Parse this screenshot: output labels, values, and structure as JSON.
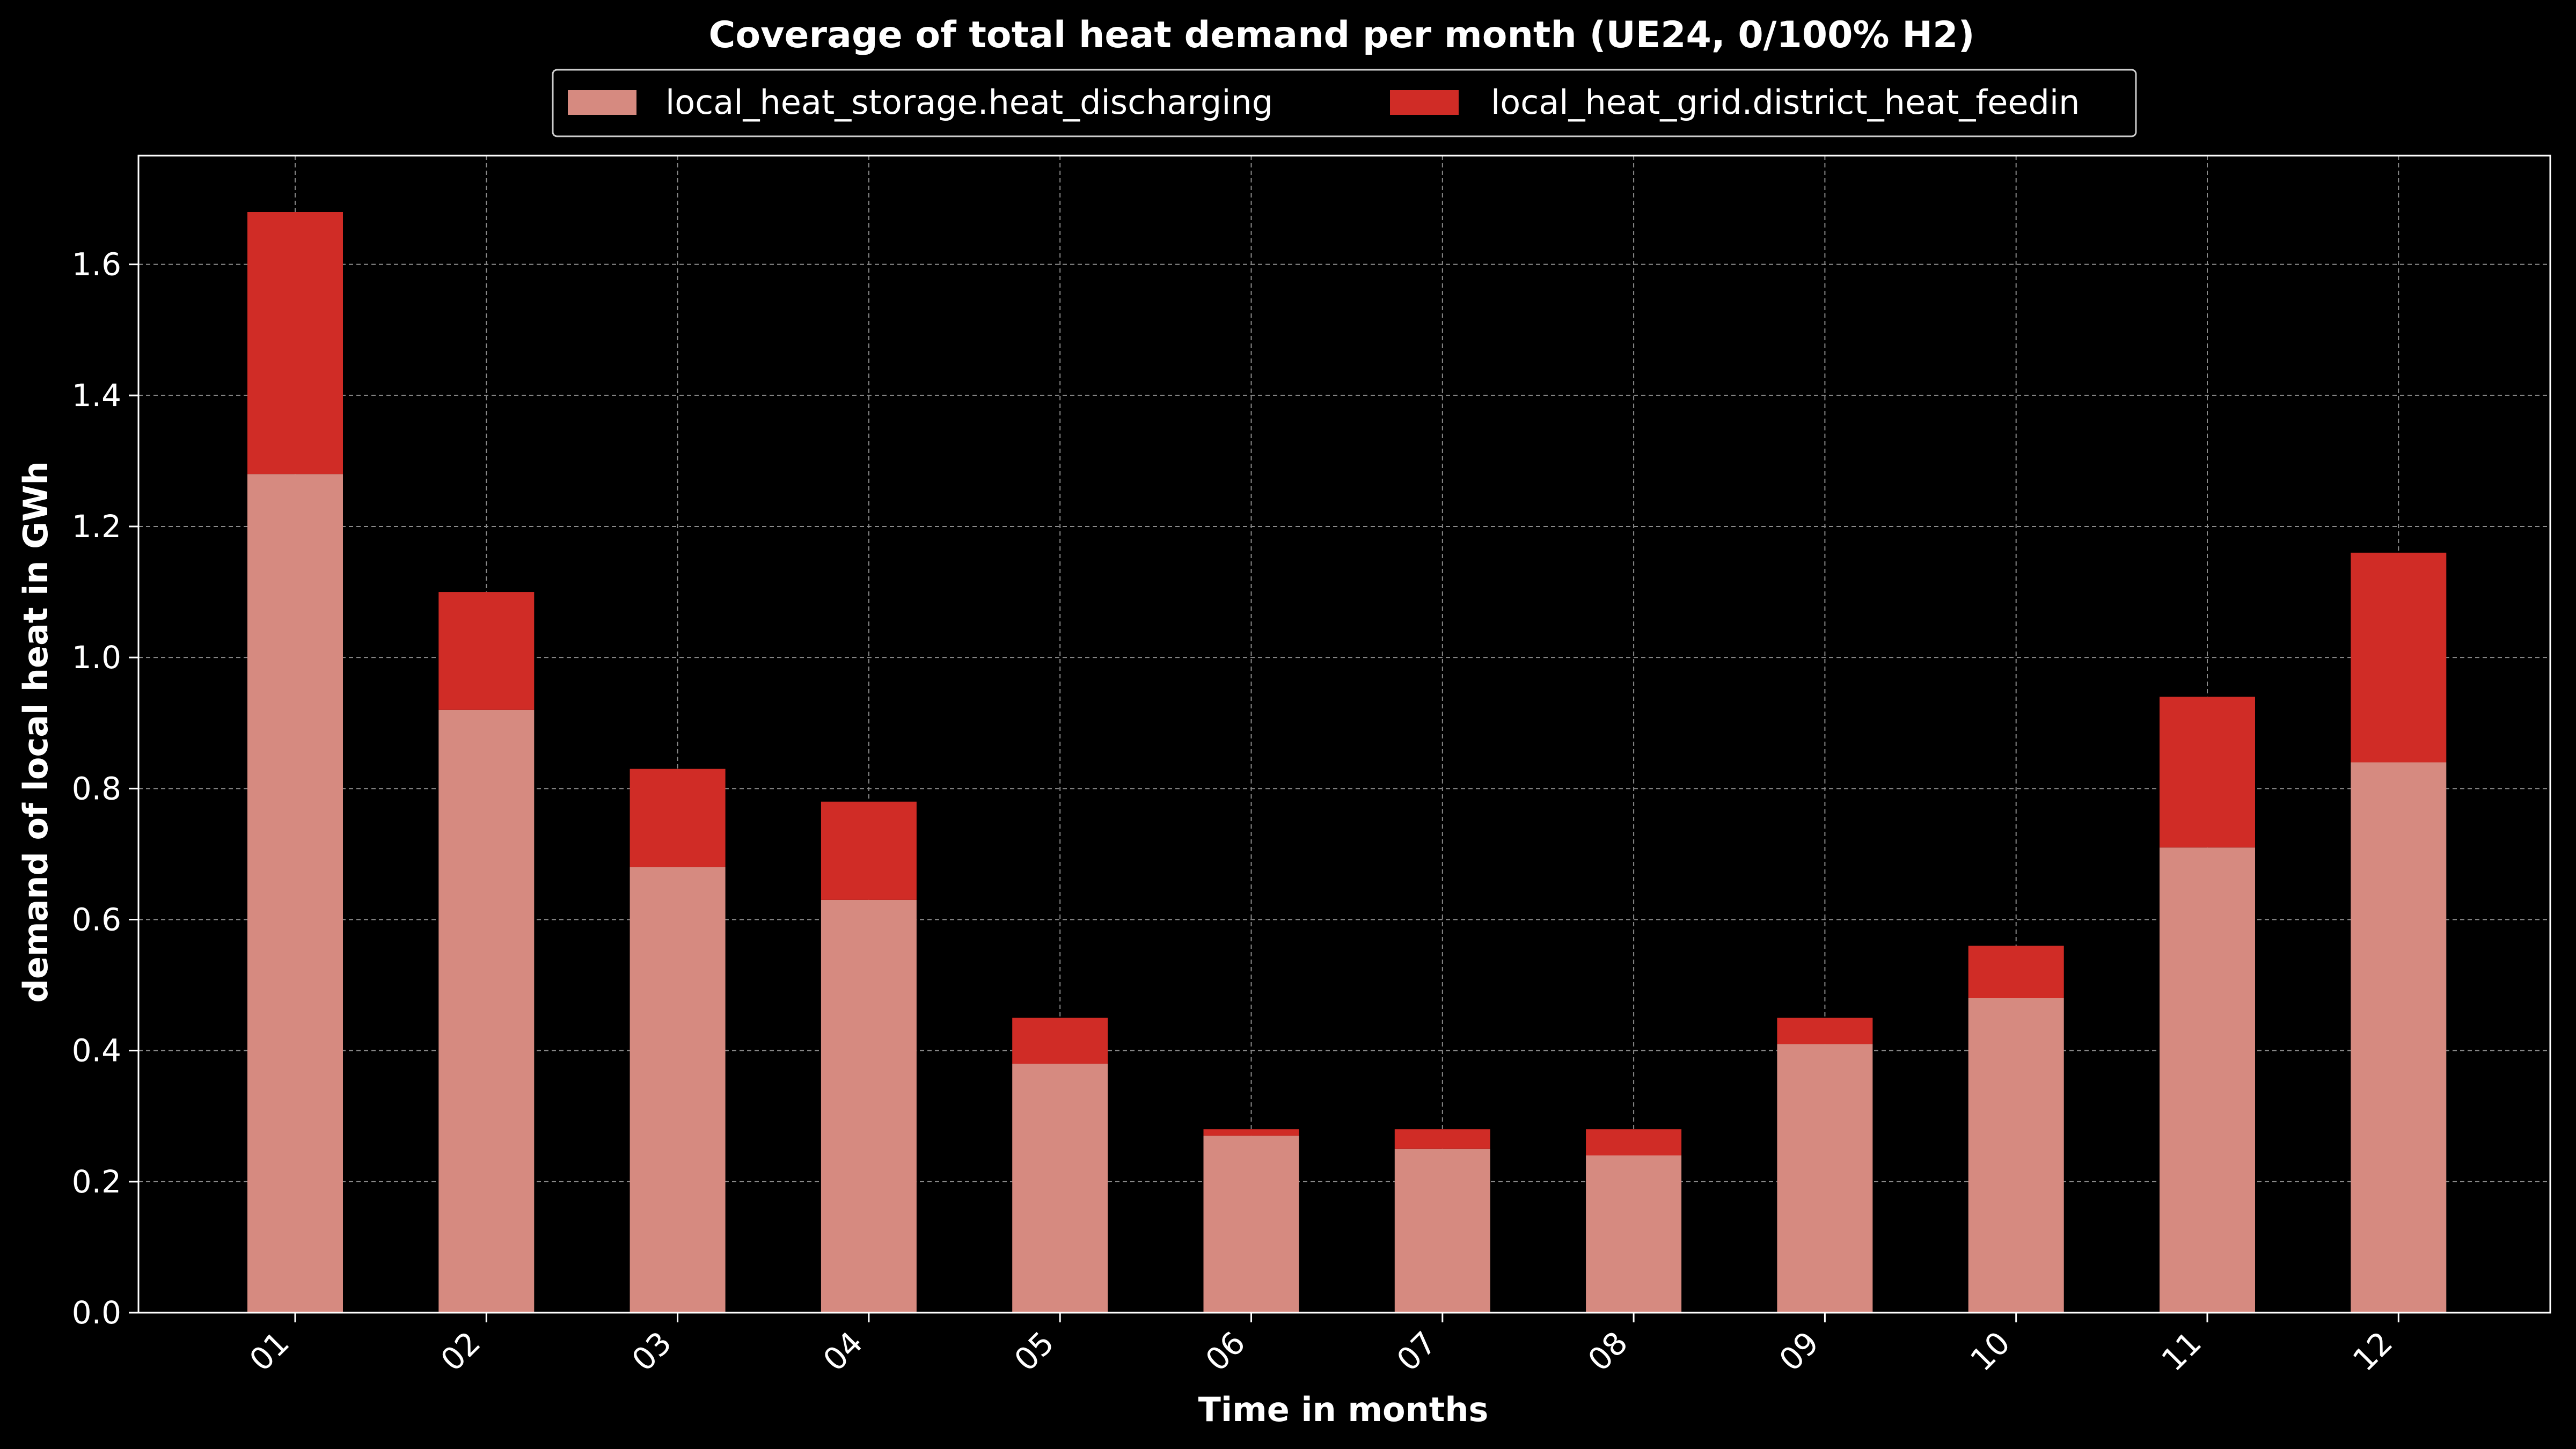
{
  "chart_data": {
    "type": "bar",
    "stacked": true,
    "title": "Coverage of total heat demand per month (UE24, 0/100% H2)",
    "xlabel": "Time in months",
    "ylabel": "demand of local heat in GWh",
    "categories": [
      "01",
      "02",
      "03",
      "04",
      "05",
      "06",
      "07",
      "08",
      "09",
      "10",
      "11",
      "12"
    ],
    "ylim": [
      0,
      1.766
    ],
    "yticks": [
      "0.0",
      "0.2",
      "0.4",
      "0.6",
      "0.8",
      "1.0",
      "1.2",
      "1.4",
      "1.6"
    ],
    "ytick_values": [
      0,
      0.2,
      0.4,
      0.6,
      0.8,
      1.0,
      1.2,
      1.4,
      1.6
    ],
    "grid": true,
    "legend_position": "top-center",
    "series": [
      {
        "name": "local_heat_storage.heat_discharging",
        "color": "#d68a80",
        "values": [
          1.28,
          0.92,
          0.68,
          0.63,
          0.38,
          0.27,
          0.25,
          0.24,
          0.41,
          0.48,
          0.71,
          0.84
        ]
      },
      {
        "name": "local_heat_grid.district_heat_feedin",
        "color": "#d02c26",
        "values": [
          0.4,
          0.18,
          0.15,
          0.15,
          0.07,
          0.01,
          0.03,
          0.04,
          0.04,
          0.08,
          0.23,
          0.32
        ]
      }
    ],
    "colors": {
      "background": "#000000",
      "axes_frame": "#ffffff",
      "grid": "#8a8a8a",
      "text": "#ffffff"
    }
  }
}
